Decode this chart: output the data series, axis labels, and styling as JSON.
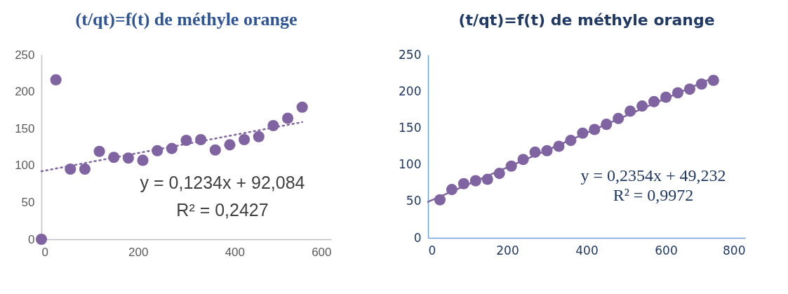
{
  "chart_data": [
    {
      "type": "scatter",
      "title": "(t/qt)=f(t) de méthyle orange",
      "marker": "circle",
      "grid": false,
      "legend": false,
      "xlim": [
        0,
        600
      ],
      "xticks": [
        0,
        200,
        400,
        600
      ],
      "ylim": [
        0,
        250
      ],
      "yticks": [
        0,
        50,
        100,
        150,
        200,
        250
      ],
      "annotations": [
        "y = 0,1234x + 92,084",
        "R² = 0,2427"
      ],
      "series": [
        {
          "color": "#8064a2",
          "x": [
            0,
            30,
            60,
            90,
            120,
            150,
            180,
            210,
            240,
            270,
            300,
            330,
            360,
            390,
            420,
            450,
            480,
            510,
            540
          ],
          "values": [
            0,
            216,
            95,
            95,
            119,
            111,
            110,
            107,
            120,
            123,
            134,
            135,
            121,
            128,
            135,
            139,
            154,
            164,
            179
          ]
        },
        {
          "type": "line",
          "line_style": "dotted",
          "marker": "none",
          "color": "#8064a2",
          "x": [
            0,
            540
          ],
          "values": [
            92.1,
            158.7
          ]
        }
      ]
    },
    {
      "type": "scatter",
      "title": "(t/qt)=f(t) de méthyle orange",
      "marker": "circle",
      "grid": false,
      "legend": false,
      "xlim": [
        0,
        800
      ],
      "xticks": [
        0,
        200,
        400,
        600,
        800
      ],
      "ylim": [
        0,
        250
      ],
      "yticks": [
        0,
        50,
        100,
        150,
        200,
        250
      ],
      "annotations": [
        "y = 0,2354x + 49,232",
        "R² = 0,9972"
      ],
      "series": [
        {
          "color": "#8064a2",
          "x": [
            30,
            60,
            90,
            120,
            150,
            180,
            210,
            240,
            270,
            300,
            330,
            360,
            390,
            420,
            450,
            480,
            510,
            540,
            570,
            600,
            630,
            660,
            690,
            720
          ],
          "values": [
            52,
            66,
            74,
            78,
            80,
            88,
            98,
            107,
            117,
            119,
            125,
            133,
            143,
            148,
            155,
            163,
            173,
            180,
            186,
            192,
            198,
            203,
            210,
            215
          ]
        },
        {
          "type": "line",
          "line_style": "solid",
          "marker": "none",
          "color": "#8064a2",
          "x": [
            0,
            720
          ],
          "values": [
            49.2,
            218.7
          ]
        }
      ]
    }
  ]
}
